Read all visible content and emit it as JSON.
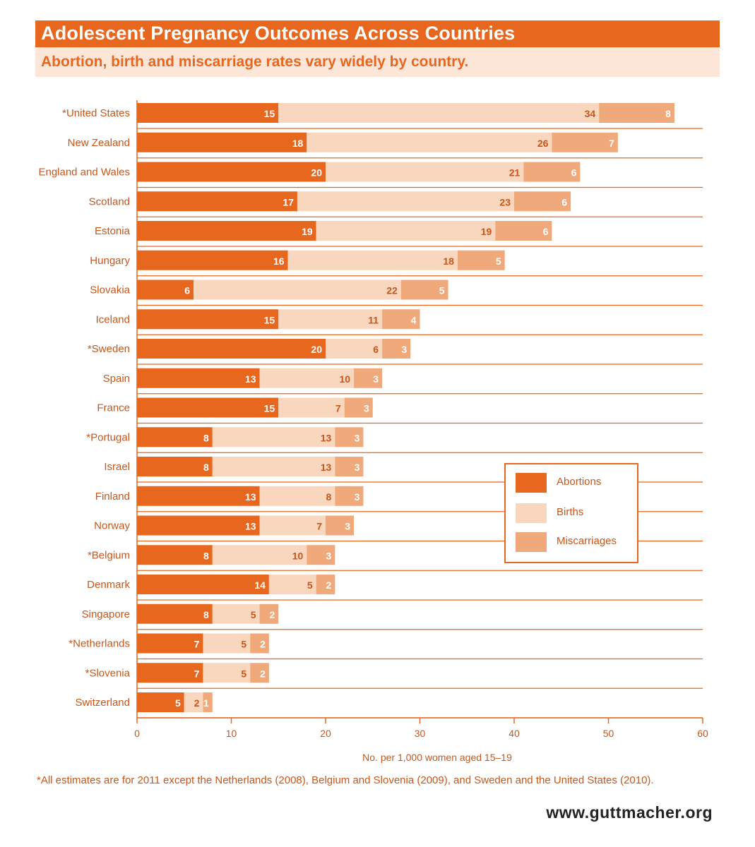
{
  "header": {
    "title": "Adolescent Pregnancy Outcomes Across Countries",
    "subtitle": "Abortion, birth and miscarriage rates vary widely by country."
  },
  "colors": {
    "abortions": "#e8671f",
    "births": "#f9d7be",
    "miscarriages": "#f0a97a",
    "accent": "#e8671f",
    "text": "#c8561a"
  },
  "chart_data": {
    "type": "bar",
    "orientation": "horizontal",
    "stacked": true,
    "title": "Adolescent Pregnancy Outcomes Across Countries",
    "subtitle": "Abortion, birth and miscarriage rates vary widely by country.",
    "xlabel": "No. per 1,000 women aged 15–19",
    "ylabel": "",
    "xlim": [
      0,
      60
    ],
    "xticks": [
      0,
      10,
      20,
      30,
      40,
      50,
      60
    ],
    "legend_position": "right",
    "categories": [
      "*United States",
      "New Zealand",
      "England and Wales",
      "Scotland",
      "Estonia",
      "Hungary",
      "Slovakia",
      "Iceland",
      "*Sweden",
      "Spain",
      "France",
      "*Portugal",
      "Israel",
      "Finland",
      "Norway",
      "*Belgium",
      "Denmark",
      "Singapore",
      "*Netherlands",
      "*Slovenia",
      "Switzerland"
    ],
    "series": [
      {
        "name": "Abortions",
        "values": [
          15,
          18,
          20,
          17,
          19,
          16,
          6,
          15,
          20,
          13,
          15,
          8,
          8,
          13,
          13,
          8,
          14,
          8,
          7,
          7,
          5
        ]
      },
      {
        "name": "Births",
        "values": [
          34,
          26,
          21,
          23,
          19,
          18,
          22,
          11,
          6,
          10,
          7,
          13,
          13,
          8,
          7,
          10,
          5,
          5,
          5,
          5,
          2
        ]
      },
      {
        "name": "Miscarriages",
        "values": [
          8,
          7,
          6,
          6,
          6,
          5,
          5,
          4,
          3,
          3,
          3,
          3,
          3,
          3,
          3,
          3,
          2,
          2,
          2,
          2,
          1
        ]
      }
    ]
  },
  "footnote": "*All estimates are for 2011 except the Netherlands (2008), Belgium and Slovenia (2009), and Sweden and the United States (2010).",
  "source": "www.guttmacher.org"
}
